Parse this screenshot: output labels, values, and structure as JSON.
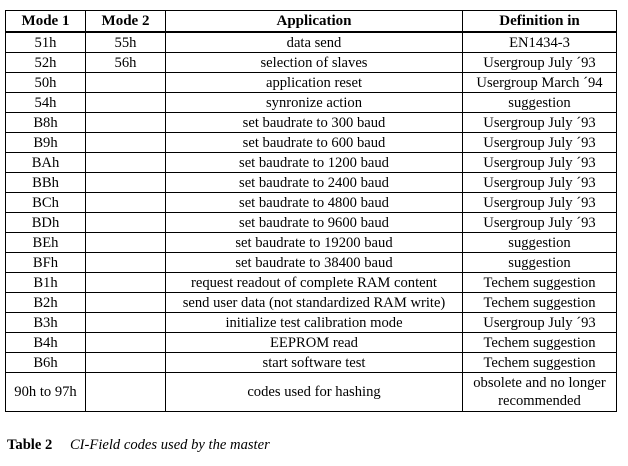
{
  "table": {
    "headers": [
      "Mode 1",
      "Mode 2",
      "Application",
      "Definition in"
    ],
    "rows": [
      {
        "mode1": "51h",
        "mode2": "55h",
        "application": "data send",
        "definition": "EN1434-3"
      },
      {
        "mode1": "52h",
        "mode2": "56h",
        "application": "selection of slaves",
        "definition": "Usergroup July ´93"
      },
      {
        "mode1": "50h",
        "mode2": "",
        "application": "application reset",
        "definition": "Usergroup March ´94"
      },
      {
        "mode1": "54h",
        "mode2": "",
        "application": "synronize action",
        "definition": "suggestion"
      },
      {
        "mode1": "B8h",
        "mode2": "",
        "application": "set baudrate to 300 baud",
        "definition": "Usergroup July ´93"
      },
      {
        "mode1": "B9h",
        "mode2": "",
        "application": "set baudrate to 600 baud",
        "definition": "Usergroup July ´93"
      },
      {
        "mode1": "BAh",
        "mode2": "",
        "application": "set baudrate to 1200 baud",
        "definition": "Usergroup July ´93"
      },
      {
        "mode1": "BBh",
        "mode2": "",
        "application": "set baudrate to 2400 baud",
        "definition": "Usergroup July ´93"
      },
      {
        "mode1": "BCh",
        "mode2": "",
        "application": "set baudrate to 4800 baud",
        "definition": "Usergroup July ´93"
      },
      {
        "mode1": "BDh",
        "mode2": "",
        "application": "set baudrate to 9600 baud",
        "definition": "Usergroup July ´93"
      },
      {
        "mode1": "BEh",
        "mode2": "",
        "application": "set baudrate to 19200 baud",
        "definition": "suggestion"
      },
      {
        "mode1": "BFh",
        "mode2": "",
        "application": "set baudrate to 38400 baud",
        "definition": "suggestion"
      },
      {
        "mode1": "B1h",
        "mode2": "",
        "application": "request readout of complete RAM content",
        "definition": "Techem suggestion"
      },
      {
        "mode1": "B2h",
        "mode2": "",
        "application": "send user data (not standardized RAM write)",
        "definition": "Techem suggestion"
      },
      {
        "mode1": "B3h",
        "mode2": "",
        "application": "initialize test calibration mode",
        "definition": "Usergroup July ´93"
      },
      {
        "mode1": "B4h",
        "mode2": "",
        "application": "EEPROM read",
        "definition": "Techem suggestion"
      },
      {
        "mode1": "B6h",
        "mode2": "",
        "application": "start software test",
        "definition": "Techem suggestion"
      },
      {
        "mode1": "90h to 97h",
        "mode2": "",
        "application": "codes used for hashing",
        "definition": "obsolete and no longer recommended"
      }
    ]
  },
  "caption": {
    "label": "Table 2",
    "text": "CI-Field codes used by the master"
  }
}
